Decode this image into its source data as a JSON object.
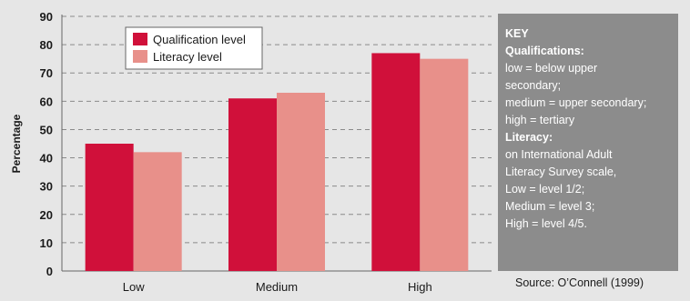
{
  "chart_data": {
    "type": "bar",
    "categories": [
      "Low",
      "Medium",
      "High"
    ],
    "series": [
      {
        "name": "Qualification level",
        "color": "#d0103a",
        "values": [
          45,
          61,
          77
        ]
      },
      {
        "name": "Literacy level",
        "color": "#e8908a",
        "values": [
          42,
          63,
          75
        ]
      }
    ],
    "ylabel": "Percentage",
    "xlabel": "",
    "ylim": [
      0,
      90
    ],
    "yticks": [
      0,
      10,
      20,
      30,
      40,
      50,
      60,
      70,
      80,
      90
    ],
    "grid": true,
    "legend_placement": "top-left"
  },
  "key": {
    "title": "KEY",
    "lines": [
      {
        "text": "Qualifications:",
        "bold": true
      },
      {
        "text": "low = below upper",
        "bold": false
      },
      {
        "text": "secondary;",
        "bold": false
      },
      {
        "text": "medium = upper secondary;",
        "bold": false
      },
      {
        "text": "high = tertiary",
        "bold": false
      },
      {
        "text": "Literacy:",
        "bold": true
      },
      {
        "text": "on International Adult",
        "bold": false
      },
      {
        "text": "Literacy Survey scale,",
        "bold": false
      },
      {
        "text": "Low = level 1/2;",
        "bold": false
      },
      {
        "text": "Medium = level 3;",
        "bold": false
      },
      {
        "text": "High = level 4/5.",
        "bold": false
      }
    ]
  },
  "source": "Source: O’Connell (1999)"
}
